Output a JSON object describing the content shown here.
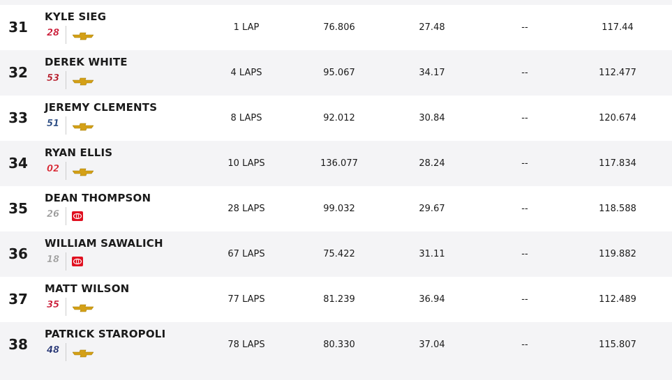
{
  "table": {
    "rows": [
      [
        "31",
        "KYLE SIEG",
        "28",
        "1 LAP",
        "76.806",
        "27.48",
        "--",
        "117.44"
      ],
      [
        "32",
        "DEREK WHITE",
        "53",
        "4 LAPS",
        "95.067",
        "34.17",
        "--",
        "112.477"
      ],
      [
        "33",
        "JEREMY CLEMENTS",
        "51",
        "8 LAPS",
        "92.012",
        "30.84",
        "--",
        "120.674"
      ],
      [
        "34",
        "RYAN ELLIS",
        "02",
        "10 LAPS",
        "136.077",
        "28.24",
        "--",
        "117.834"
      ],
      [
        "35",
        "DEAN THOMPSON",
        "26",
        "28 LAPS",
        "99.032",
        "29.67",
        "--",
        "118.588"
      ],
      [
        "36",
        "WILLIAM SAWALICH",
        "18",
        "67 LAPS",
        "75.422",
        "31.11",
        "--",
        "119.882"
      ],
      [
        "37",
        "MATT WILSON",
        "35",
        "77 LAPS",
        "81.239",
        "36.94",
        "--",
        "112.489"
      ],
      [
        "38",
        "PATRICK STAROPOLI",
        "48",
        "78 LAPS",
        "80.330",
        "37.04",
        "--",
        "115.807"
      ]
    ]
  }
}
